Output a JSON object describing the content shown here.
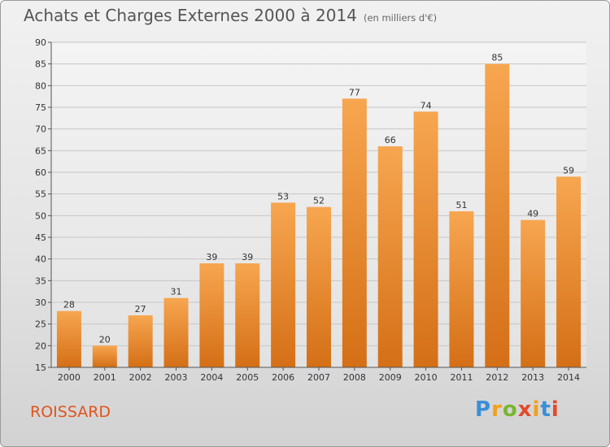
{
  "header": {
    "title": "Achats et Charges Externes 2000 à 2014",
    "subtitle": "(en milliers d'€)"
  },
  "footer": {
    "commune": "ROISSARD",
    "logo_text": "Proxiti"
  },
  "colors": {
    "bar_top": "#f7a650",
    "bar_bottom": "#d46f16",
    "commune_text": "#e0541e",
    "grid": "#c6c6c6"
  },
  "chart_data": {
    "type": "bar",
    "title": "Achats et Charges Externes 2000 à 2014",
    "subtitle": "(en milliers d'€)",
    "xlabel": "",
    "ylabel": "",
    "categories": [
      "2000",
      "2001",
      "2002",
      "2003",
      "2004",
      "2005",
      "2006",
      "2007",
      "2008",
      "2009",
      "2010",
      "2011",
      "2012",
      "2013",
      "2014"
    ],
    "values": [
      28,
      20,
      27,
      31,
      39,
      39,
      53,
      52,
      77,
      66,
      74,
      51,
      85,
      49,
      59
    ],
    "ylim": [
      15,
      90
    ],
    "yticks": [
      15,
      20,
      25,
      30,
      35,
      40,
      45,
      50,
      55,
      60,
      65,
      70,
      75,
      80,
      85,
      90
    ],
    "grid": true,
    "legend": "none",
    "data_labels": true
  }
}
